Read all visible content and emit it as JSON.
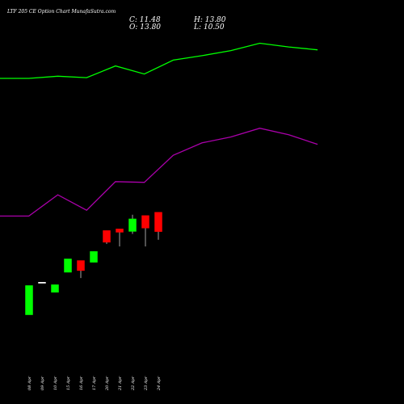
{
  "title": "LTF 205 CE Option Chart MunafaSutra.com",
  "ohlc": {
    "close": "C: 11.48",
    "high": "H: 13.80",
    "open": "O: 13.80",
    "low": "L: 10.50"
  },
  "colors": {
    "background": "#000000",
    "up": "#00ff00",
    "down": "#ff0000",
    "upper_line": "#00ff00",
    "lower_line": "#aa00aa",
    "text": "#ffffff"
  },
  "chart_data": {
    "type": "candlestick",
    "categories": [
      "08 Apr",
      "09 Apr",
      "10 Apr",
      "15 Apr",
      "16 Apr",
      "17 Apr",
      "20 Apr",
      "21 Apr",
      "22 Apr",
      "23 Apr",
      "24 Apr"
    ],
    "candles": [
      {
        "date": "08 Apr",
        "open": 1.5,
        "high": 5.0,
        "low": 1.5,
        "close": 5.0
      },
      {
        "date": "09 Apr",
        "open": 5.4,
        "high": 5.4,
        "low": 5.4,
        "close": 5.4
      },
      {
        "date": "10 Apr",
        "open": 4.2,
        "high": 5.1,
        "low": 4.2,
        "close": 5.1
      },
      {
        "date": "15 Apr",
        "open": 6.6,
        "high": 8.2,
        "low": 6.6,
        "close": 8.2
      },
      {
        "date": "16 Apr",
        "open": 8.0,
        "high": 8.0,
        "low": 5.9,
        "close": 6.8
      },
      {
        "date": "17 Apr",
        "open": 7.8,
        "high": 9.1,
        "low": 7.8,
        "close": 9.1
      },
      {
        "date": "20 Apr",
        "open": 11.6,
        "high": 11.6,
        "low": 10.0,
        "close": 10.2
      },
      {
        "date": "21 Apr",
        "open": 11.8,
        "high": 11.8,
        "low": 9.7,
        "close": 11.4
      },
      {
        "date": "22 Apr",
        "open": 11.5,
        "high": 13.5,
        "low": 11.2,
        "close": 13.0
      },
      {
        "date": "23 Apr",
        "open": 13.4,
        "high": 13.4,
        "low": 9.7,
        "close": 11.9
      },
      {
        "date": "24 Apr",
        "open": 13.8,
        "high": 13.8,
        "low": 10.5,
        "close": 11.48
      }
    ],
    "ylim": [
      0,
      16
    ],
    "upper_band_line": [
      43.5,
      43.5,
      43.8,
      43.6,
      45.2,
      44.1,
      46.0,
      46.6,
      47.3,
      48.3,
      47.8,
      47.4
    ],
    "lower_band_line": [
      24.7,
      24.7,
      27.6,
      25.5,
      29.4,
      29.3,
      33.0,
      34.7,
      35.5,
      36.7,
      35.8,
      34.5
    ],
    "overlay_ylim": [
      20,
      52
    ]
  }
}
